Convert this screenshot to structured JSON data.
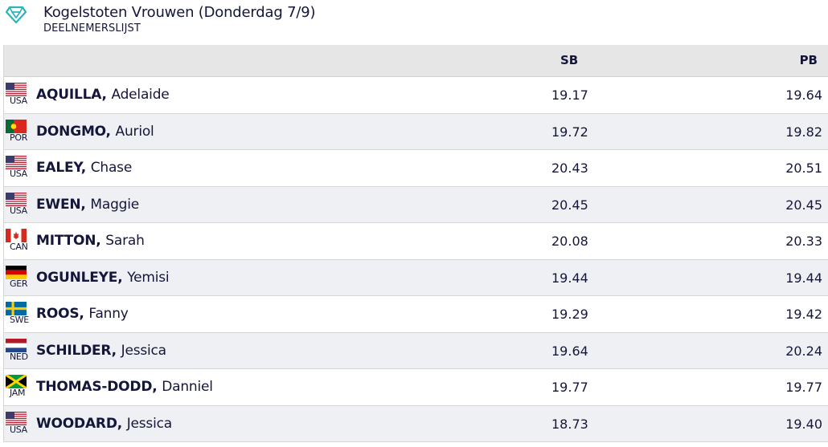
{
  "header": {
    "title": "Kogelstoten Vrouwen (Donderdag 7/9)",
    "subtitle": "DEELNEMERSLIJST",
    "logo_icon": "diamond-league-logo-icon",
    "accent_color": "#2bb5b8"
  },
  "table": {
    "columns": {
      "sb": "SB",
      "pb": "PB"
    },
    "rows": [
      {
        "country": "USA",
        "flag": "usa-flag-icon",
        "last": "AQUILLA,",
        "first": "Adelaide",
        "sb": "19.17",
        "pb": "19.64"
      },
      {
        "country": "POR",
        "flag": "portugal-flag-icon",
        "last": "DONGMO,",
        "first": "Auriol",
        "sb": "19.72",
        "pb": "19.82"
      },
      {
        "country": "USA",
        "flag": "usa-flag-icon",
        "last": "EALEY,",
        "first": "Chase",
        "sb": "20.43",
        "pb": "20.51"
      },
      {
        "country": "USA",
        "flag": "usa-flag-icon",
        "last": "EWEN,",
        "first": "Maggie",
        "sb": "20.45",
        "pb": "20.45"
      },
      {
        "country": "CAN",
        "flag": "canada-flag-icon",
        "last": "MITTON,",
        "first": "Sarah",
        "sb": "20.08",
        "pb": "20.33"
      },
      {
        "country": "GER",
        "flag": "germany-flag-icon",
        "last": "OGUNLEYE,",
        "first": "Yemisi",
        "sb": "19.44",
        "pb": "19.44"
      },
      {
        "country": "SWE",
        "flag": "sweden-flag-icon",
        "last": "ROOS,",
        "first": "Fanny",
        "sb": "19.29",
        "pb": "19.42"
      },
      {
        "country": "NED",
        "flag": "netherlands-flag-icon",
        "last": "SCHILDER,",
        "first": "Jessica",
        "sb": "19.64",
        "pb": "20.24"
      },
      {
        "country": "JAM",
        "flag": "jamaica-flag-icon",
        "last": "THOMAS-DODD,",
        "first": "Danniel",
        "sb": "19.77",
        "pb": "19.77"
      },
      {
        "country": "USA",
        "flag": "usa-flag-icon",
        "last": "WOODARD,",
        "first": "Jessica",
        "sb": "18.73",
        "pb": "19.40"
      }
    ]
  }
}
